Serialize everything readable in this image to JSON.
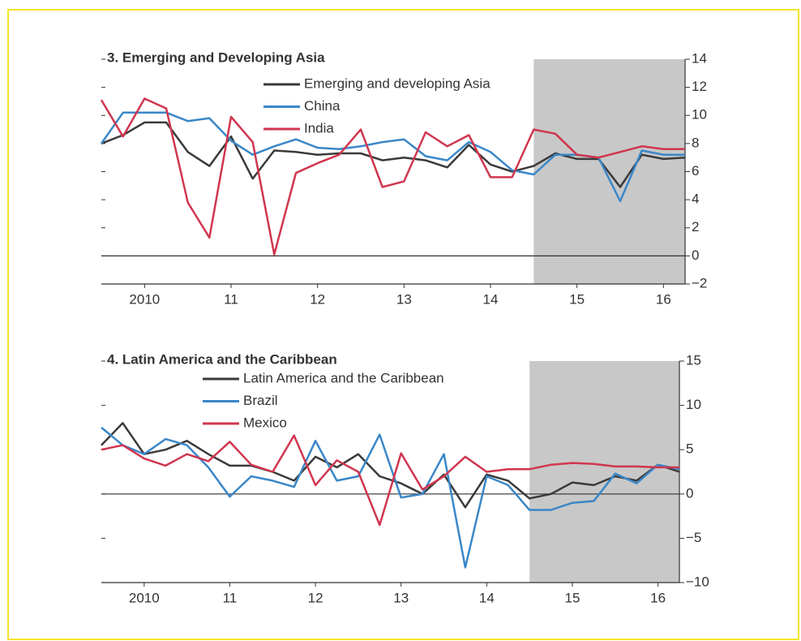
{
  "chart_data": [
    {
      "type": "line",
      "title": "3. Emerging and Developing Asia",
      "x": [
        2010,
        2010.25,
        2010.5,
        2010.75,
        2011,
        2011.25,
        2011.5,
        2011.75,
        2012,
        2012.25,
        2012.5,
        2012.75,
        2013,
        2013.25,
        2013.5,
        2013.75,
        2014,
        2014.25,
        2014.5,
        2014.75,
        2015,
        2015.25,
        2015.5,
        2015.75,
        2016,
        2016.25,
        2016.5,
        2016.75
      ],
      "xlim": [
        2010,
        2016.75
      ],
      "xticks": [
        {
          "value": 2010.5,
          "label": "2010"
        },
        {
          "value": 2011.5,
          "label": "11"
        },
        {
          "value": 2012.5,
          "label": "12"
        },
        {
          "value": 2013.5,
          "label": "13"
        },
        {
          "value": 2014.5,
          "label": "14"
        },
        {
          "value": 2015.5,
          "label": "15"
        },
        {
          "value": 2016.5,
          "label": "16"
        }
      ],
      "ylim": [
        -2,
        14
      ],
      "yticks": [
        {
          "value": -2,
          "label": "−2"
        },
        0,
        2,
        4,
        6,
        8,
        10,
        12,
        14
      ],
      "shade": [
        2015,
        2016.75
      ],
      "series": [
        {
          "name": "Emerging and developing Asia",
          "color": "#3a3a3a",
          "values": [
            8.0,
            8.6,
            9.5,
            9.5,
            7.4,
            6.4,
            8.5,
            5.5,
            7.5,
            7.4,
            7.2,
            7.3,
            7.3,
            6.8,
            7.0,
            6.8,
            6.3,
            7.9,
            6.5,
            6.0,
            6.4,
            7.3,
            6.9,
            6.9,
            4.9,
            7.2,
            6.9,
            7.0
          ]
        },
        {
          "name": "China",
          "color": "#3a87c8",
          "values": [
            8.0,
            10.2,
            10.2,
            10.2,
            9.6,
            9.8,
            8.2,
            7.2,
            7.8,
            8.3,
            7.7,
            7.6,
            7.8,
            8.1,
            8.3,
            7.1,
            6.8,
            8.1,
            7.4,
            6.1,
            5.8,
            7.2,
            7.2,
            7.0,
            3.9,
            7.5,
            7.2,
            7.2
          ]
        },
        {
          "name": "India",
          "color": "#d0364f",
          "values": [
            11.1,
            8.5,
            11.2,
            10.5,
            3.8,
            1.3,
            9.9,
            8.1,
            0.1,
            5.9,
            6.6,
            7.2,
            9.0,
            4.9,
            5.3,
            8.8,
            7.8,
            8.6,
            5.6,
            5.6,
            9.0,
            8.7,
            7.2,
            7.0,
            7.4,
            7.8,
            7.6,
            7.6
          ]
        }
      ]
    },
    {
      "type": "line",
      "title": "4.  Latin America and the Caribbean",
      "x": [
        2010,
        2010.25,
        2010.5,
        2010.75,
        2011,
        2011.25,
        2011.5,
        2011.75,
        2012,
        2012.25,
        2012.5,
        2012.75,
        2013,
        2013.25,
        2013.5,
        2013.75,
        2014,
        2014.25,
        2014.5,
        2014.75,
        2015,
        2015.25,
        2015.5,
        2015.75,
        2016,
        2016.25,
        2016.5,
        2016.75
      ],
      "xlim": [
        2010,
        2016.75
      ],
      "xticks": [
        {
          "value": 2010.5,
          "label": "2010"
        },
        {
          "value": 2011.5,
          "label": "11"
        },
        {
          "value": 2012.5,
          "label": "12"
        },
        {
          "value": 2013.5,
          "label": "13"
        },
        {
          "value": 2014.5,
          "label": "14"
        },
        {
          "value": 2015.5,
          "label": "15"
        },
        {
          "value": 2016.5,
          "label": "16"
        }
      ],
      "ylim": [
        -10,
        15
      ],
      "yticks": [
        {
          "value": -10,
          "label": "−10"
        },
        {
          "value": -5,
          "label": "−5"
        },
        0,
        5,
        10,
        15
      ],
      "shade": [
        2015,
        2016.75
      ],
      "series": [
        {
          "name": "Latin America and the Caribbean",
          "color": "#3a3a3a",
          "values": [
            5.5,
            8.0,
            4.5,
            5.0,
            6.0,
            4.5,
            3.2,
            3.2,
            2.5,
            1.5,
            4.2,
            3.0,
            4.5,
            2.0,
            1.2,
            0.0,
            2.2,
            -1.5,
            2.2,
            1.5,
            -0.5,
            0.0,
            1.3,
            1.0,
            2.0,
            1.5,
            3.3,
            2.5
          ]
        },
        {
          "name": "Brazil",
          "color": "#3a87c8",
          "values": [
            7.5,
            5.5,
            4.5,
            6.2,
            5.5,
            3.0,
            -0.3,
            2.0,
            1.5,
            0.8,
            6.0,
            1.5,
            2.0,
            6.7,
            -0.4,
            0.0,
            4.5,
            -8.3,
            2.0,
            1.0,
            -1.8,
            -1.8,
            -1.0,
            -0.8,
            2.3,
            1.2,
            3.3,
            2.8
          ]
        },
        {
          "name": "Mexico",
          "color": "#d0364f",
          "values": [
            5.0,
            5.5,
            4.0,
            3.2,
            4.5,
            3.7,
            5.9,
            3.3,
            2.5,
            6.6,
            1.0,
            3.8,
            2.5,
            -3.5,
            4.6,
            0.5,
            2.0,
            4.2,
            2.5,
            2.8,
            2.8,
            3.3,
            3.5,
            3.4,
            3.1,
            3.1,
            3.0,
            3.0
          ]
        }
      ]
    }
  ]
}
